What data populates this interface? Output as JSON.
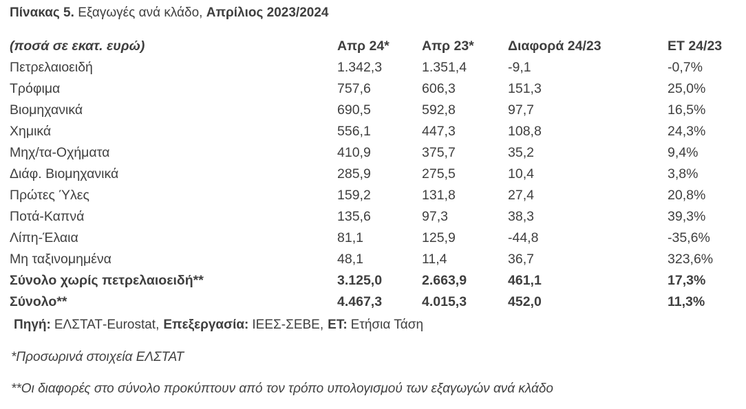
{
  "title": {
    "label": "Πίνακας 5.",
    "text": "Εξαγωγές ανά κλάδο,",
    "period": "Απρίλιος 2023/2024"
  },
  "table": {
    "header": [
      "(ποσά σε εκατ. ευρώ)",
      "Απρ 24*",
      "Απρ 23*",
      "Διαφορά 24/23",
      "ΕΤ 24/23"
    ],
    "rows": [
      [
        "Πετρελαιοειδή",
        "1.342,3",
        "1.351,4",
        "-9,1",
        "-0,7%"
      ],
      [
        "Τρόφιμα",
        "757,6",
        "606,3",
        "151,3",
        "25,0%"
      ],
      [
        "Βιομηχανικά",
        "690,5",
        "592,8",
        "97,7",
        "16,5%"
      ],
      [
        "Χημικά",
        "556,1",
        "447,3",
        "108,8",
        "24,3%"
      ],
      [
        "Μηχ/τα-Οχήματα",
        "410,9",
        "375,7",
        "35,2",
        "9,4%"
      ],
      [
        "Διάφ. Βιομηχανικά",
        "285,9",
        "275,5",
        "10,4",
        "3,8%"
      ],
      [
        "Πρώτες Ύλες",
        "159,2",
        "131,8",
        "27,4",
        "20,8%"
      ],
      [
        "Ποτά-Καπνά",
        "135,6",
        "97,3",
        "38,3",
        "39,3%"
      ],
      [
        "Λίπη-Έλαια",
        "81,1",
        "125,9",
        "-44,8",
        "-35,6%"
      ],
      [
        "Μη ταξινομημένα",
        "48,1",
        "11,4",
        "36,7",
        "323,6%"
      ]
    ],
    "totals": [
      [
        "Σύνολο χωρίς πετρελαιοειδή**",
        "3.125,0",
        "2.663,9",
        "461,1",
        "17,3%"
      ],
      [
        "Σύνολο**",
        "4.467,3",
        "4.015,3",
        "452,0",
        "11,3%"
      ]
    ]
  },
  "source": [
    {
      "label": "Πηγή:",
      "text": "ΕΛΣΤΑΤ-Eurostat,"
    },
    {
      "label": "Επεξεργασία:",
      "text": "ΙΕΕΣ-ΣΕΒΕ,"
    },
    {
      "label": "ΕΤ:",
      "text": "Ετήσια Τάση"
    }
  ],
  "notes": [
    "*Προσωρινά στοιχεία ΕΛΣΤΑΤ",
    "**Οι διαφορές στο σύνολο προκύπτουν από τον τρόπο υπολογισμού των εξαγωγών ανά κλάδο"
  ]
}
